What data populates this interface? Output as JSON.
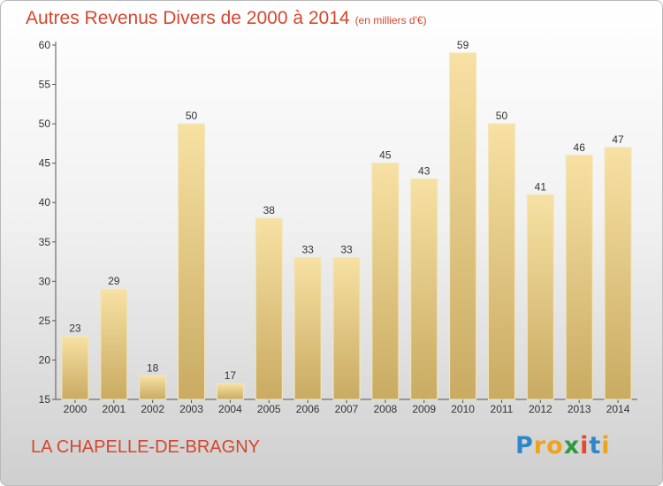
{
  "header": {
    "title": "Autres Revenus Divers de 2000 à 2014",
    "subtitle": "(en milliers d'€)"
  },
  "footer": {
    "commune": "LA CHAPELLE-DE-BRAGNY",
    "logo_letters": [
      "P",
      "r",
      "o",
      "x",
      "i",
      "t",
      "i"
    ],
    "logo_colors": [
      "#2f86c9",
      "#f0a21a",
      "#f0a21a",
      "#2d9a3e",
      "#e24a2a",
      "#2f86c9",
      "#f0a21a"
    ]
  },
  "colors": {
    "bar_light": "#f7e1a3",
    "bar_dark": "#c9ab62",
    "title": "#d6462e"
  },
  "chart_data": {
    "type": "bar",
    "categories": [
      "2000",
      "2001",
      "2002",
      "2003",
      "2004",
      "2005",
      "2006",
      "2007",
      "2008",
      "2009",
      "2010",
      "2011",
      "2012",
      "2013",
      "2014"
    ],
    "values": [
      23,
      29,
      18,
      50,
      17,
      38,
      33,
      33,
      45,
      43,
      59,
      50,
      41,
      46,
      47
    ],
    "title": "Autres Revenus Divers de 2000 à 2014",
    "xlabel": "",
    "ylabel": "",
    "ylim": [
      15,
      60
    ],
    "yticks": [
      15,
      20,
      25,
      30,
      35,
      40,
      45,
      50,
      55,
      60
    ],
    "grid": false
  }
}
